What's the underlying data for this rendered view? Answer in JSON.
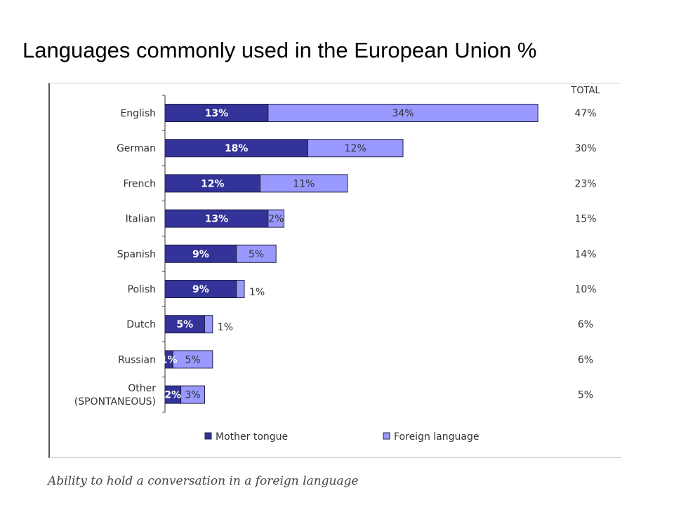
{
  "title": "Languages commonly used in the European Union %",
  "caption": "Ability to hold a conversation in a foreign language",
  "colors": {
    "mother": "#333399",
    "foreign": "#9999ff",
    "text": "#333333"
  },
  "chart_data": {
    "type": "bar",
    "orientation": "horizontal",
    "stacked": true,
    "categories": [
      "English",
      "German",
      "French",
      "Italian",
      "Spanish",
      "Polish",
      "Dutch",
      "Russian",
      "Other (SPONTANEOUS)"
    ],
    "category_lines": [
      [
        "English"
      ],
      [
        "German"
      ],
      [
        "French"
      ],
      [
        "Italian"
      ],
      [
        "Spanish"
      ],
      [
        "Polish"
      ],
      [
        "Dutch"
      ],
      [
        "Russian"
      ],
      [
        "Other",
        "(SPONTANEOUS)"
      ]
    ],
    "series": [
      {
        "name": "Mother tongue",
        "values": [
          13,
          18,
          12,
          13,
          9,
          9,
          5,
          1,
          2
        ]
      },
      {
        "name": "Foreign language",
        "values": [
          34,
          12,
          11,
          2,
          5,
          1,
          1,
          5,
          3
        ]
      }
    ],
    "totals_header": "TOTAL",
    "totals": [
      "47%",
      "30%",
      "23%",
      "15%",
      "14%",
      "10%",
      "6%",
      "6%",
      "5%"
    ],
    "legend_position": "bottom"
  }
}
